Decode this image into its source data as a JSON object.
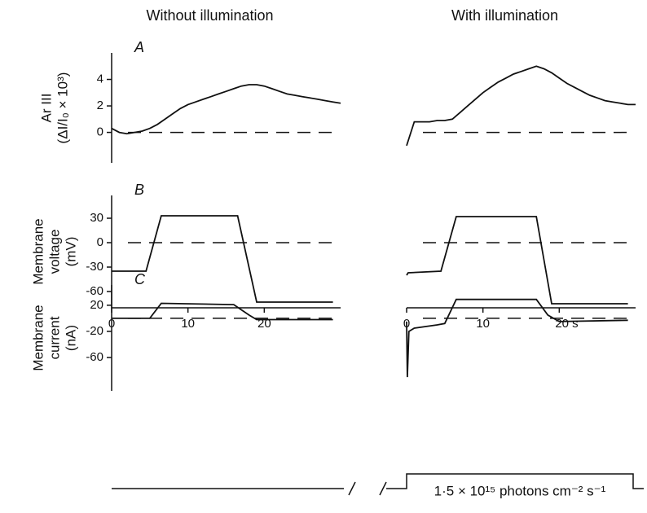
{
  "chart_data": [
    {
      "type": "line",
      "title": "Without illumination",
      "panel_label": "A",
      "ylabel": [
        "Ar III",
        "(ΔI/I₀ × 10³)"
      ],
      "x": [
        0,
        1,
        2,
        3,
        4,
        5,
        6,
        7,
        8,
        9,
        10,
        11,
        12,
        13,
        14,
        15,
        16,
        17,
        18,
        19,
        20,
        21,
        22,
        23,
        24,
        25,
        26,
        27,
        28,
        29,
        30
      ],
      "values": [
        0.3,
        0,
        -0.1,
        0,
        0.1,
        0.3,
        0.6,
        1,
        1.4,
        1.8,
        2.1,
        2.3,
        2.5,
        2.7,
        2.9,
        3.1,
        3.3,
        3.5,
        3.6,
        3.6,
        3.5,
        3.3,
        3.1,
        2.9,
        2.8,
        2.7,
        2.6,
        2.5,
        2.4,
        2.3,
        2.2
      ],
      "color": "#111111",
      "xlim": [
        0,
        30
      ],
      "ylim": [
        -2.3,
        6
      ],
      "yticks": [
        0,
        2,
        4
      ],
      "reference_y": 0,
      "yaxis": true,
      "xaxis": false
    },
    {
      "type": "line",
      "title": "With illumination",
      "x": [
        0,
        1,
        2,
        3,
        4,
        5,
        6,
        7,
        8,
        9,
        10,
        11,
        12,
        13,
        14,
        15,
        16,
        17,
        18,
        19,
        20,
        21,
        22,
        23,
        24,
        25,
        26,
        27,
        28,
        29,
        30
      ],
      "values": [
        -1,
        0.8,
        0.8,
        0.8,
        0.9,
        0.9,
        1.0,
        1.5,
        2.0,
        2.5,
        3.0,
        3.4,
        3.8,
        4.1,
        4.4,
        4.6,
        4.8,
        5.0,
        4.8,
        4.5,
        4.1,
        3.7,
        3.4,
        3.1,
        2.8,
        2.6,
        2.4,
        2.3,
        2.2,
        2.1,
        2.1
      ],
      "color": "#111111",
      "xlim": [
        0,
        30
      ],
      "ylim": [
        -2.3,
        6
      ],
      "reference_y": 0,
      "yaxis": false,
      "xaxis": false
    },
    {
      "type": "line",
      "panel_label": "B",
      "ylabel": [
        "Membrane",
        "voltage",
        "(mV)"
      ],
      "x": [
        0,
        4.5,
        6.5,
        16.5,
        19,
        29
      ],
      "values": [
        -35,
        -35,
        33,
        33,
        -73,
        -73
      ],
      "color": "#111111",
      "xlim": [
        0,
        30
      ],
      "ylim": [
        -80,
        58
      ],
      "yticks": [
        30,
        0,
        -30,
        -60
      ],
      "xticks": [
        0,
        10,
        20
      ],
      "reference_y": 0,
      "yaxis": true,
      "xaxis": true
    },
    {
      "type": "line",
      "x": [
        0,
        0.2,
        4.5,
        6.5,
        17,
        19,
        29
      ],
      "values": [
        -40,
        -37,
        -35,
        32,
        32,
        -75,
        -75
      ],
      "color": "#111111",
      "xlim": [
        0,
        30
      ],
      "ylim": [
        -80,
        58
      ],
      "xticks": [
        0,
        10,
        {
          "value": 20,
          "label": "20 s"
        }
      ],
      "reference_y": 0,
      "yaxis": false,
      "xaxis": true
    },
    {
      "type": "line",
      "panel_label": "C",
      "ylabel": [
        "Membrane",
        "current",
        "(nA)"
      ],
      "x": [
        0,
        5,
        6.5,
        16,
        18,
        19,
        29
      ],
      "values": [
        0,
        0,
        23,
        21,
        5,
        -2,
        -2
      ],
      "color": "#111111",
      "xlim": [
        0,
        30
      ],
      "ylim": [
        -111,
        51
      ],
      "yticks": [
        20,
        -20,
        -60
      ],
      "reference_y": 0,
      "yaxis": true,
      "xaxis": false
    },
    {
      "type": "line",
      "x": [
        0,
        0.1,
        0.3,
        1,
        4,
        5,
        6.5,
        17,
        18.5,
        20,
        29
      ],
      "values": [
        -5,
        -90,
        -20,
        -15,
        -10,
        -8,
        29,
        29,
        5,
        -5,
        -3
      ],
      "color": "#111111",
      "xlim": [
        0,
        30
      ],
      "ylim": [
        -111,
        51
      ],
      "reference_y": 0,
      "yaxis": false,
      "xaxis": false
    }
  ],
  "stimulus_label": "1·5 × 10¹⁵ photons cm⁻² s⁻¹"
}
